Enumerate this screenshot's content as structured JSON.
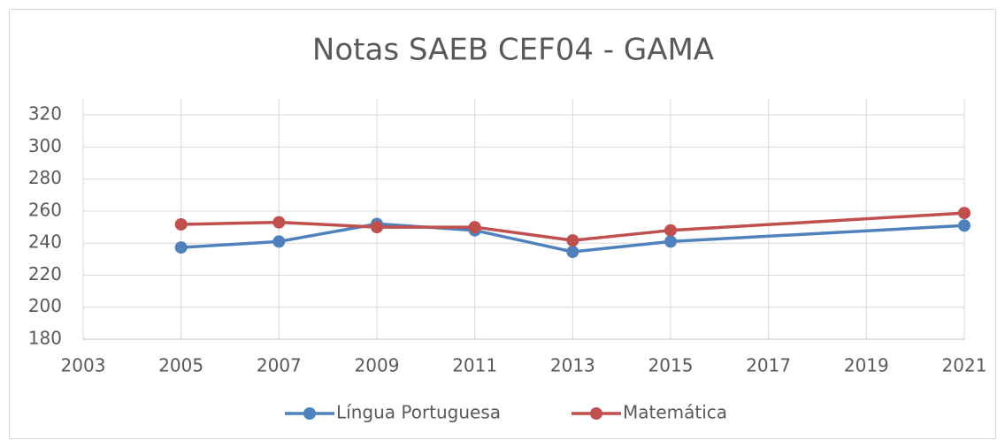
{
  "chart_data": {
    "type": "line",
    "title": "Notas SAEB CEF04 - GAMA",
    "x": [
      2005,
      2007,
      2009,
      2011,
      2013,
      2015,
      2021
    ],
    "series": [
      {
        "name": "Língua Portuguesa",
        "color": "#4f81bd",
        "values": [
          237.3,
          241,
          252,
          248,
          234.6,
          241,
          251
        ]
      },
      {
        "name": "Matemática",
        "color": "#c0504d",
        "values": [
          251.7,
          253,
          250,
          250,
          241.7,
          248,
          258.8
        ]
      }
    ],
    "xlim": [
      2003,
      2021
    ],
    "xticks": [
      2003,
      2005,
      2007,
      2009,
      2011,
      2013,
      2015,
      2017,
      2019,
      2021
    ],
    "ylim": [
      180,
      330
    ],
    "yticks": [
      180,
      200,
      220,
      240,
      260,
      280,
      300,
      320
    ],
    "grid": true,
    "legend": "bottom"
  }
}
